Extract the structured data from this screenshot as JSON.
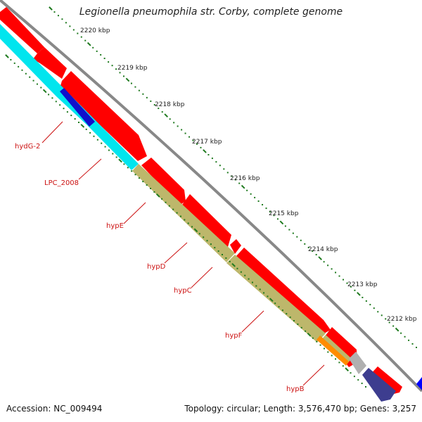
{
  "title": "Legionella pneumophila str. Corby, complete genome",
  "footer": {
    "accession": "Accession: NC_009494",
    "summary": "Topology: circular; Length: 3,576,470 bp; Genes: 3,257"
  },
  "ruler": {
    "tick_labels": [
      "2220 kbp",
      "2219 kbp",
      "2218 kbp",
      "2217 kbp",
      "2216 kbp",
      "2215 kbp",
      "2214 kbp",
      "2213 kbp",
      "2212 kbp"
    ],
    "tick_color": "#1f7a1f"
  },
  "gene_labels": [
    "hydG-2",
    "LPC_2008",
    "hypE",
    "hypD",
    "hypC",
    "hypF",
    "hypB"
  ],
  "colors": {
    "backbone": "#888888",
    "forward_cds": "#ff0000",
    "reverse_cds_cyan": "#00e5ee",
    "reverse_cds_khaki": "#bdb76b",
    "highlight_blue": "#1010cc",
    "highlight_navy": "#3d3d8f",
    "highlight_orange": "#ff8c00",
    "highlight_grey": "#b0b0b0",
    "label_red": "#cc1111",
    "right_edge_blue": "#0000ff"
  }
}
